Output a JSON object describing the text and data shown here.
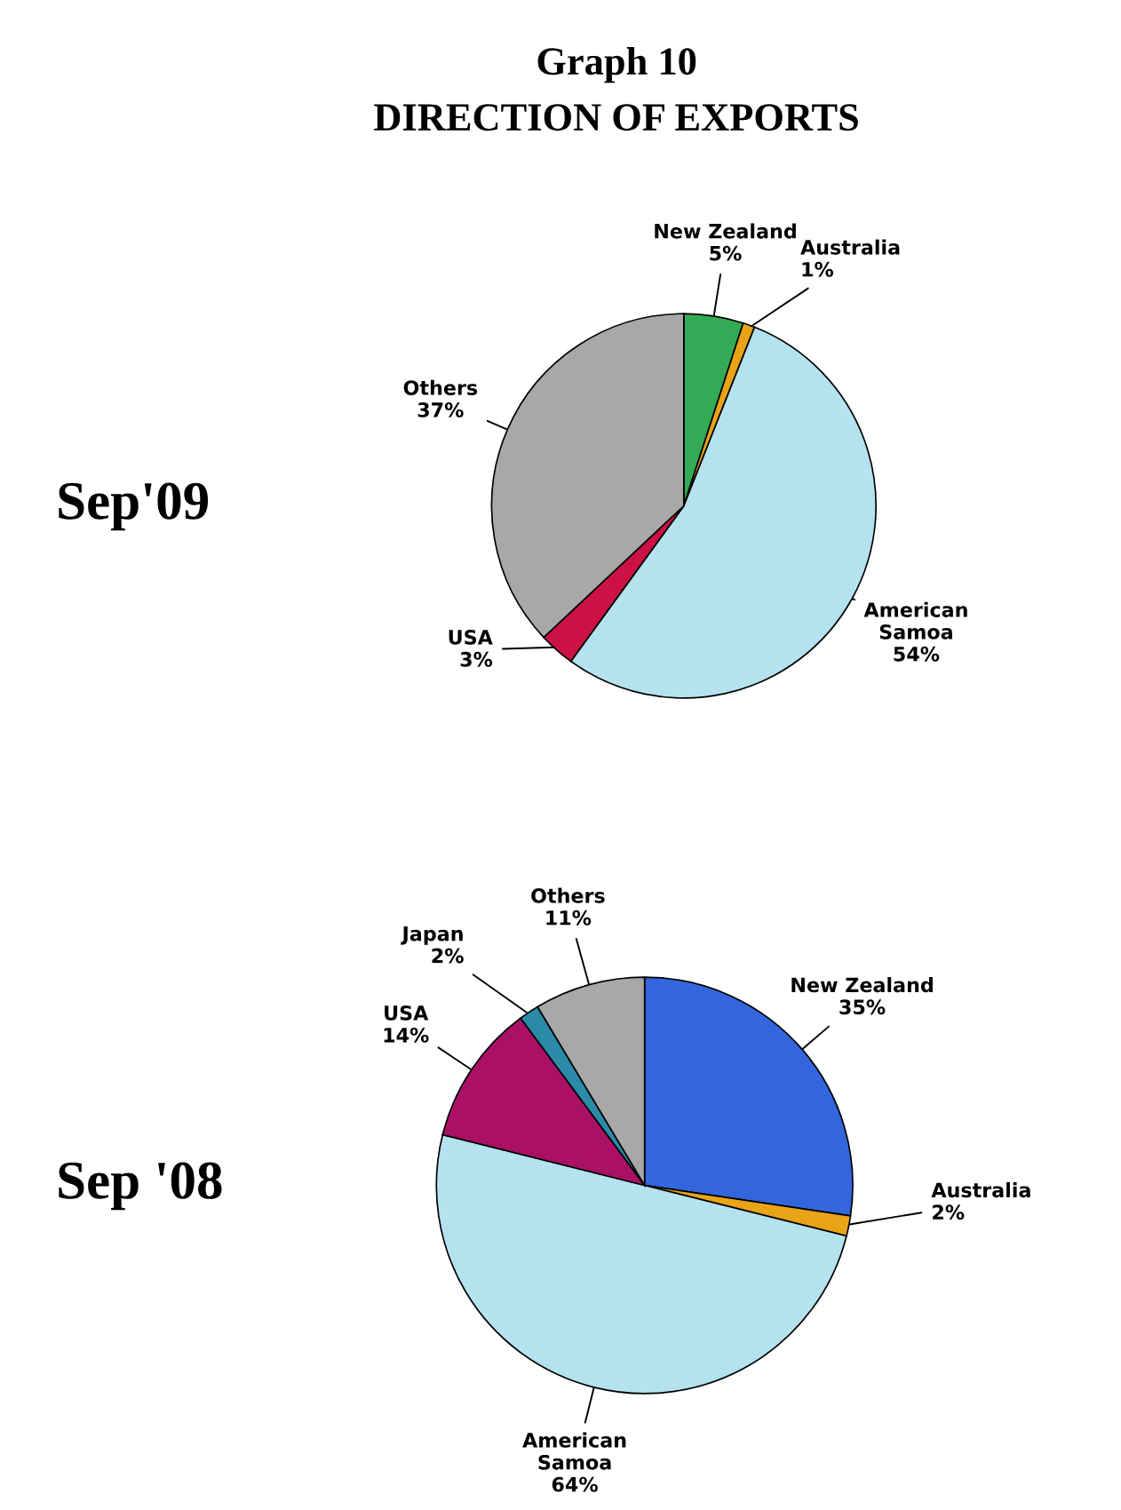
{
  "chart_data": [
    {
      "type": "pie",
      "title": "Graph 10",
      "subtitle": "DIRECTION OF EXPORTS",
      "ylabel": "Sep'09",
      "categories": [
        "New Zealand",
        "Australia",
        "American Samoa",
        "USA",
        "Others"
      ],
      "values": [
        5,
        1,
        54,
        3,
        37
      ],
      "value_labels": [
        "5%",
        "1%",
        "54%",
        "3%",
        "37%"
      ],
      "colors": [
        "#33aa55",
        "#e8a317",
        "#b4e2ee",
        "#cc1144",
        "#a8a8a8"
      ]
    },
    {
      "type": "pie",
      "ylabel": "Sep '08",
      "categories": [
        "New Zealand",
        "Australia",
        "American Samoa",
        "USA",
        "Japan",
        "Others"
      ],
      "values": [
        35,
        2,
        64,
        14,
        2,
        11
      ],
      "value_labels": [
        "35%",
        "2%",
        "64%",
        "14%",
        "2%",
        "11%"
      ],
      "colors": [
        "#3366dd",
        "#e8a317",
        "#b4e2ee",
        "#aa1166",
        "#2a8aa8",
        "#a8a8a8"
      ]
    }
  ]
}
